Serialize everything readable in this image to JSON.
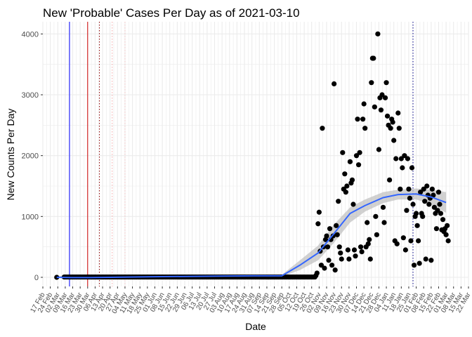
{
  "chart_data": {
    "type": "scatter",
    "title": "New 'Probable' Cases Per Day as of 2021-03-10",
    "xlabel": "Date",
    "ylabel": "New Counts Per Day",
    "xlim": [
      "2020-02-17",
      "2021-03-22"
    ],
    "ylim": [
      -150,
      4200
    ],
    "y_ticks": [
      0,
      1000,
      2000,
      3000,
      4000
    ],
    "x_ticks": [
      {
        "date": "2020-02-17",
        "label": "17 Feb"
      },
      {
        "date": "2020-02-24",
        "label": "24 Feb"
      },
      {
        "date": "2020-03-02",
        "label": "02 Mar"
      },
      {
        "date": "2020-03-09",
        "label": "09 Mar"
      },
      {
        "date": "2020-03-16",
        "label": "16 Mar"
      },
      {
        "date": "2020-03-23",
        "label": "23 Mar"
      },
      {
        "date": "2020-03-30",
        "label": "30 Mar"
      },
      {
        "date": "2020-04-06",
        "label": "06 Apr"
      },
      {
        "date": "2020-04-13",
        "label": "13 Apr"
      },
      {
        "date": "2020-04-20",
        "label": "20 Apr"
      },
      {
        "date": "2020-04-27",
        "label": "27 Apr"
      },
      {
        "date": "2020-05-04",
        "label": "04 May"
      },
      {
        "date": "2020-05-11",
        "label": "11 May"
      },
      {
        "date": "2020-05-18",
        "label": "18 May"
      },
      {
        "date": "2020-05-25",
        "label": "25 May"
      },
      {
        "date": "2020-06-01",
        "label": "01 Jun"
      },
      {
        "date": "2020-06-08",
        "label": "08 Jun"
      },
      {
        "date": "2020-06-15",
        "label": "15 Jun"
      },
      {
        "date": "2020-06-22",
        "label": "22 Jun"
      },
      {
        "date": "2020-06-29",
        "label": "29 Jun"
      },
      {
        "date": "2020-07-06",
        "label": "06 Jul"
      },
      {
        "date": "2020-07-13",
        "label": "13 Jul"
      },
      {
        "date": "2020-07-20",
        "label": "20 Jul"
      },
      {
        "date": "2020-07-27",
        "label": "27 Jul"
      },
      {
        "date": "2020-08-03",
        "label": "03 Aug"
      },
      {
        "date": "2020-08-10",
        "label": "10 Aug"
      },
      {
        "date": "2020-08-17",
        "label": "17 Aug"
      },
      {
        "date": "2020-08-24",
        "label": "24 Aug"
      },
      {
        "date": "2020-08-31",
        "label": "31 Aug"
      },
      {
        "date": "2020-09-07",
        "label": "07 Sep"
      },
      {
        "date": "2020-09-14",
        "label": "14 Sep"
      },
      {
        "date": "2020-09-21",
        "label": "21 Sep"
      },
      {
        "date": "2020-09-28",
        "label": "28 Sep"
      },
      {
        "date": "2020-10-05",
        "label": "05 Oct"
      },
      {
        "date": "2020-10-12",
        "label": "12 Oct"
      },
      {
        "date": "2020-10-19",
        "label": "19 Oct"
      },
      {
        "date": "2020-10-26",
        "label": "26 Oct"
      },
      {
        "date": "2020-11-02",
        "label": "02 Nov"
      },
      {
        "date": "2020-11-09",
        "label": "09 Nov"
      },
      {
        "date": "2020-11-16",
        "label": "16 Nov"
      },
      {
        "date": "2020-11-23",
        "label": "23 Nov"
      },
      {
        "date": "2020-11-30",
        "label": "30 Nov"
      },
      {
        "date": "2020-12-07",
        "label": "07 Dec"
      },
      {
        "date": "2020-12-14",
        "label": "14 Dec"
      },
      {
        "date": "2020-12-21",
        "label": "21 Dec"
      },
      {
        "date": "2020-12-28",
        "label": "28 Dec"
      },
      {
        "date": "2021-01-04",
        "label": "04 Jan"
      },
      {
        "date": "2021-01-11",
        "label": "11 Jan"
      },
      {
        "date": "2021-01-18",
        "label": "18 Jan"
      },
      {
        "date": "2021-01-25",
        "label": "25 Jan"
      },
      {
        "date": "2021-02-01",
        "label": "01 Feb"
      },
      {
        "date": "2021-02-08",
        "label": "08 Feb"
      },
      {
        "date": "2021-02-15",
        "label": "15 Feb"
      },
      {
        "date": "2021-02-22",
        "label": "22 Feb"
      },
      {
        "date": "2021-03-01",
        "label": "01 Mar"
      },
      {
        "date": "2021-03-08",
        "label": "08 Mar"
      },
      {
        "date": "2021-03-15",
        "label": "15 Mar"
      },
      {
        "date": "2021-03-22",
        "label": "22 Mar"
      }
    ],
    "grid": true,
    "colors": {
      "points": "#000000",
      "smooth_line": "#3366ff",
      "smooth_band": "#bebebe",
      "grid": "#ebebeb"
    },
    "reference_lines": [
      {
        "date": "2020-03-13",
        "color": "#0000ff",
        "style": "solid"
      },
      {
        "date": "2020-03-30",
        "color": "#cc0000",
        "style": "solid"
      },
      {
        "date": "2020-04-10",
        "color": "#8b0000",
        "style": "dotted"
      },
      {
        "date": "2020-04-22",
        "color": "#f4a6a6",
        "style": "dotted"
      },
      {
        "date": "2020-05-04",
        "color": "#f4c2c2",
        "style": "dotted"
      },
      {
        "date": "2021-01-29",
        "color": "#00008b",
        "style": "dotted"
      }
    ],
    "zero_series": {
      "start": "2020-03-08",
      "end": "2020-10-29",
      "value": 5
    },
    "first_point": {
      "date": "2020-03-01",
      "value": 0
    },
    "points": [
      [
        "2020-10-30",
        30
      ],
      [
        "2020-10-31",
        70
      ],
      [
        "2020-11-01",
        880
      ],
      [
        "2020-11-02",
        1070
      ],
      [
        "2020-11-03",
        430
      ],
      [
        "2020-11-04",
        200
      ],
      [
        "2020-11-05",
        2450
      ],
      [
        "2020-11-06",
        500
      ],
      [
        "2020-11-07",
        150
      ],
      [
        "2020-11-08",
        620
      ],
      [
        "2020-11-09",
        680
      ],
      [
        "2020-11-10",
        500
      ],
      [
        "2020-11-11",
        280
      ],
      [
        "2020-11-12",
        800
      ],
      [
        "2020-11-13",
        620
      ],
      [
        "2020-11-14",
        200
      ],
      [
        "2020-11-15",
        680
      ],
      [
        "2020-11-16",
        3180
      ],
      [
        "2020-11-17",
        120
      ],
      [
        "2020-11-18",
        850
      ],
      [
        "2020-11-19",
        700
      ],
      [
        "2020-11-20",
        1250
      ],
      [
        "2020-11-21",
        500
      ],
      [
        "2020-11-22",
        400
      ],
      [
        "2020-11-23",
        300
      ],
      [
        "2020-11-24",
        2050
      ],
      [
        "2020-11-25",
        1450
      ],
      [
        "2020-11-26",
        1700
      ],
      [
        "2020-11-27",
        1400
      ],
      [
        "2020-11-28",
        1500
      ],
      [
        "2020-11-29",
        450
      ],
      [
        "2020-11-30",
        300
      ],
      [
        "2020-12-01",
        1900
      ],
      [
        "2020-12-02",
        1550
      ],
      [
        "2020-12-03",
        1600
      ],
      [
        "2020-12-04",
        1200
      ],
      [
        "2020-12-05",
        450
      ],
      [
        "2020-12-06",
        350
      ],
      [
        "2020-12-07",
        2000
      ],
      [
        "2020-12-08",
        2600
      ],
      [
        "2020-12-09",
        1850
      ],
      [
        "2020-12-10",
        2050
      ],
      [
        "2020-12-11",
        500
      ],
      [
        "2020-12-12",
        420
      ],
      [
        "2020-12-13",
        2600
      ],
      [
        "2020-12-14",
        2850
      ],
      [
        "2020-12-15",
        2450
      ],
      [
        "2020-12-16",
        500
      ],
      [
        "2020-12-17",
        900
      ],
      [
        "2020-12-18",
        550
      ],
      [
        "2020-12-19",
        620
      ],
      [
        "2020-12-20",
        300
      ],
      [
        "2020-12-21",
        3200
      ],
      [
        "2020-12-22",
        3600
      ],
      [
        "2020-12-23",
        3600
      ],
      [
        "2020-12-24",
        2800
      ],
      [
        "2020-12-25",
        1000
      ],
      [
        "2020-12-26",
        700
      ],
      [
        "2020-12-27",
        4000
      ],
      [
        "2020-12-28",
        2100
      ],
      [
        "2020-12-29",
        2950
      ],
      [
        "2020-12-30",
        2750
      ],
      [
        "2020-12-31",
        3000
      ],
      [
        "2021-01-01",
        1150
      ],
      [
        "2021-01-02",
        900
      ],
      [
        "2021-01-03",
        2950
      ],
      [
        "2021-01-04",
        3200
      ],
      [
        "2021-01-05",
        2650
      ],
      [
        "2021-01-06",
        2500
      ],
      [
        "2021-01-07",
        1600
      ],
      [
        "2021-01-08",
        2450
      ],
      [
        "2021-01-09",
        2600
      ],
      [
        "2021-01-10",
        2550
      ],
      [
        "2021-01-11",
        2250
      ],
      [
        "2021-01-12",
        600
      ],
      [
        "2021-01-13",
        1950
      ],
      [
        "2021-01-14",
        550
      ],
      [
        "2021-01-15",
        2700
      ],
      [
        "2021-01-16",
        2450
      ],
      [
        "2021-01-17",
        1450
      ],
      [
        "2021-01-18",
        1950
      ],
      [
        "2021-01-19",
        1800
      ],
      [
        "2021-01-20",
        650
      ],
      [
        "2021-01-21",
        2000
      ],
      [
        "2021-01-22",
        450
      ],
      [
        "2021-01-23",
        1100
      ],
      [
        "2021-01-24",
        1950
      ],
      [
        "2021-01-25",
        1450
      ],
      [
        "2021-01-26",
        1300
      ],
      [
        "2021-01-27",
        600
      ],
      [
        "2021-01-28",
        1800
      ],
      [
        "2021-01-29",
        1200
      ],
      [
        "2021-01-30",
        200
      ],
      [
        "2021-01-31",
        1000
      ],
      [
        "2021-02-01",
        1050
      ],
      [
        "2021-02-02",
        850
      ],
      [
        "2021-02-03",
        600
      ],
      [
        "2021-02-04",
        230
      ],
      [
        "2021-02-05",
        1400
      ],
      [
        "2021-02-06",
        1050
      ],
      [
        "2021-02-07",
        1000
      ],
      [
        "2021-02-08",
        1450
      ],
      [
        "2021-02-09",
        1250
      ],
      [
        "2021-02-10",
        300
      ],
      [
        "2021-02-11",
        1500
      ],
      [
        "2021-02-12",
        1350
      ],
      [
        "2021-02-13",
        1200
      ],
      [
        "2021-02-14",
        1300
      ],
      [
        "2021-02-15",
        280
      ],
      [
        "2021-02-16",
        1450
      ],
      [
        "2021-02-17",
        1350
      ],
      [
        "2021-02-18",
        1150
      ],
      [
        "2021-02-19",
        1050
      ],
      [
        "2021-02-20",
        800
      ],
      [
        "2021-02-21",
        1100
      ],
      [
        "2021-02-22",
        1400
      ],
      [
        "2021-02-23",
        1200
      ],
      [
        "2021-02-24",
        1050
      ],
      [
        "2021-02-25",
        780
      ],
      [
        "2021-02-26",
        950
      ],
      [
        "2021-02-27",
        750
      ],
      [
        "2021-02-28",
        800
      ],
      [
        "2021-03-01",
        700
      ],
      [
        "2021-03-02",
        850
      ],
      [
        "2021-03-03",
        600
      ]
    ],
    "smooth_curve": [
      [
        "2020-03-01",
        0,
        0,
        30
      ],
      [
        "2020-03-15",
        -20,
        -5,
        10
      ],
      [
        "2020-04-01",
        -20,
        -5,
        10
      ],
      [
        "2020-06-01",
        -5,
        10,
        25
      ],
      [
        "2020-08-01",
        10,
        20,
        35
      ],
      [
        "2020-09-01",
        15,
        25,
        40
      ],
      [
        "2020-09-28",
        10,
        25,
        40
      ],
      [
        "2020-10-15",
        120,
        200,
        280
      ],
      [
        "2020-11-01",
        280,
        400,
        520
      ],
      [
        "2020-11-15",
        550,
        700,
        850
      ],
      [
        "2020-12-01",
        900,
        1050,
        1150
      ],
      [
        "2020-12-15",
        1080,
        1180,
        1280
      ],
      [
        "2021-01-01",
        1220,
        1310,
        1400
      ],
      [
        "2021-01-15",
        1280,
        1360,
        1440
      ],
      [
        "2021-02-01",
        1280,
        1370,
        1460
      ],
      [
        "2021-02-15",
        1200,
        1320,
        1440
      ],
      [
        "2021-03-01",
        1060,
        1230,
        1400
      ]
    ]
  }
}
